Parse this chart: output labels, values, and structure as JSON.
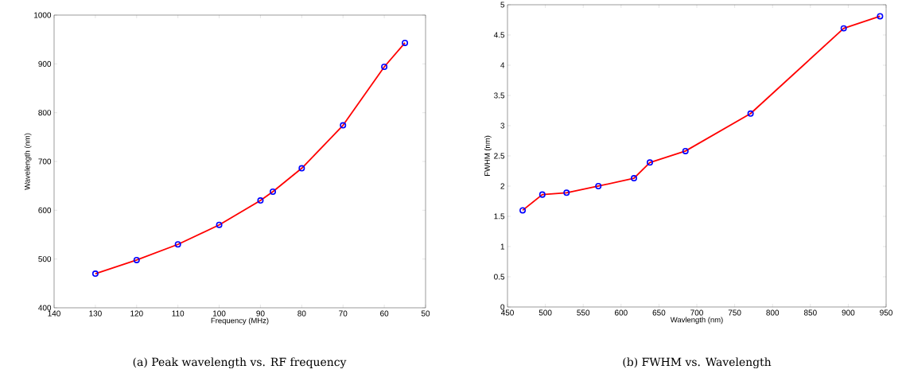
{
  "chart_data": [
    {
      "type": "line",
      "xlabel": "Frequency (MHz)",
      "ylabel": "Wavelength (nm)",
      "annotations": [
        "(a)  Peak wavelength vs. RF frequency"
      ],
      "xlim": [
        140,
        50
      ],
      "ylim": [
        400,
        1000
      ],
      "xticks": [
        140,
        130,
        120,
        110,
        100,
        90,
        80,
        70,
        60,
        50
      ],
      "yticks": [
        400,
        500,
        600,
        700,
        800,
        900,
        1000
      ],
      "grid": false,
      "series": [
        {
          "color": "#ff0000",
          "marker": "none",
          "x": [
            130,
            120,
            110,
            100,
            90,
            87,
            80,
            70,
            60,
            55
          ],
          "values": [
            470,
            498,
            530,
            570,
            620,
            638,
            686,
            774,
            894,
            943
          ]
        },
        {
          "type": "scatter",
          "color": "#0000ff",
          "marker": "circle",
          "x": [
            130,
            120,
            110,
            100,
            90,
            87,
            80,
            70,
            60,
            55
          ],
          "values": [
            470,
            498,
            530,
            570,
            620,
            638,
            686,
            774,
            894,
            943
          ]
        }
      ]
    },
    {
      "type": "line",
      "xlabel": "Wavlength (nm)",
      "ylabel": "FWHM (nm)",
      "annotations": [
        "(b)  FWHM vs. Wavelength"
      ],
      "xlim": [
        450,
        950
      ],
      "ylim": [
        0,
        5
      ],
      "xticks": [
        450,
        500,
        550,
        600,
        650,
        700,
        750,
        800,
        850,
        900,
        950
      ],
      "yticks": [
        0,
        0.5,
        1,
        1.5,
        2,
        2.5,
        3,
        3.5,
        4,
        4.5,
        5
      ],
      "grid": false,
      "series": [
        {
          "color": "#ff0000",
          "marker": "none",
          "x": [
            470,
            496,
            528,
            570,
            617,
            638,
            685,
            771,
            894,
            942
          ],
          "values": [
            1.6,
            1.86,
            1.89,
            2.0,
            2.13,
            2.39,
            2.58,
            3.2,
            4.61,
            4.81
          ]
        },
        {
          "type": "scatter",
          "color": "#0000ff",
          "marker": "circle",
          "x": [
            470,
            496,
            528,
            570,
            617,
            638,
            685,
            771,
            894,
            942
          ],
          "values": [
            1.6,
            1.86,
            1.89,
            2.0,
            2.13,
            2.39,
            2.58,
            3.2,
            4.61,
            4.81
          ]
        }
      ]
    }
  ]
}
